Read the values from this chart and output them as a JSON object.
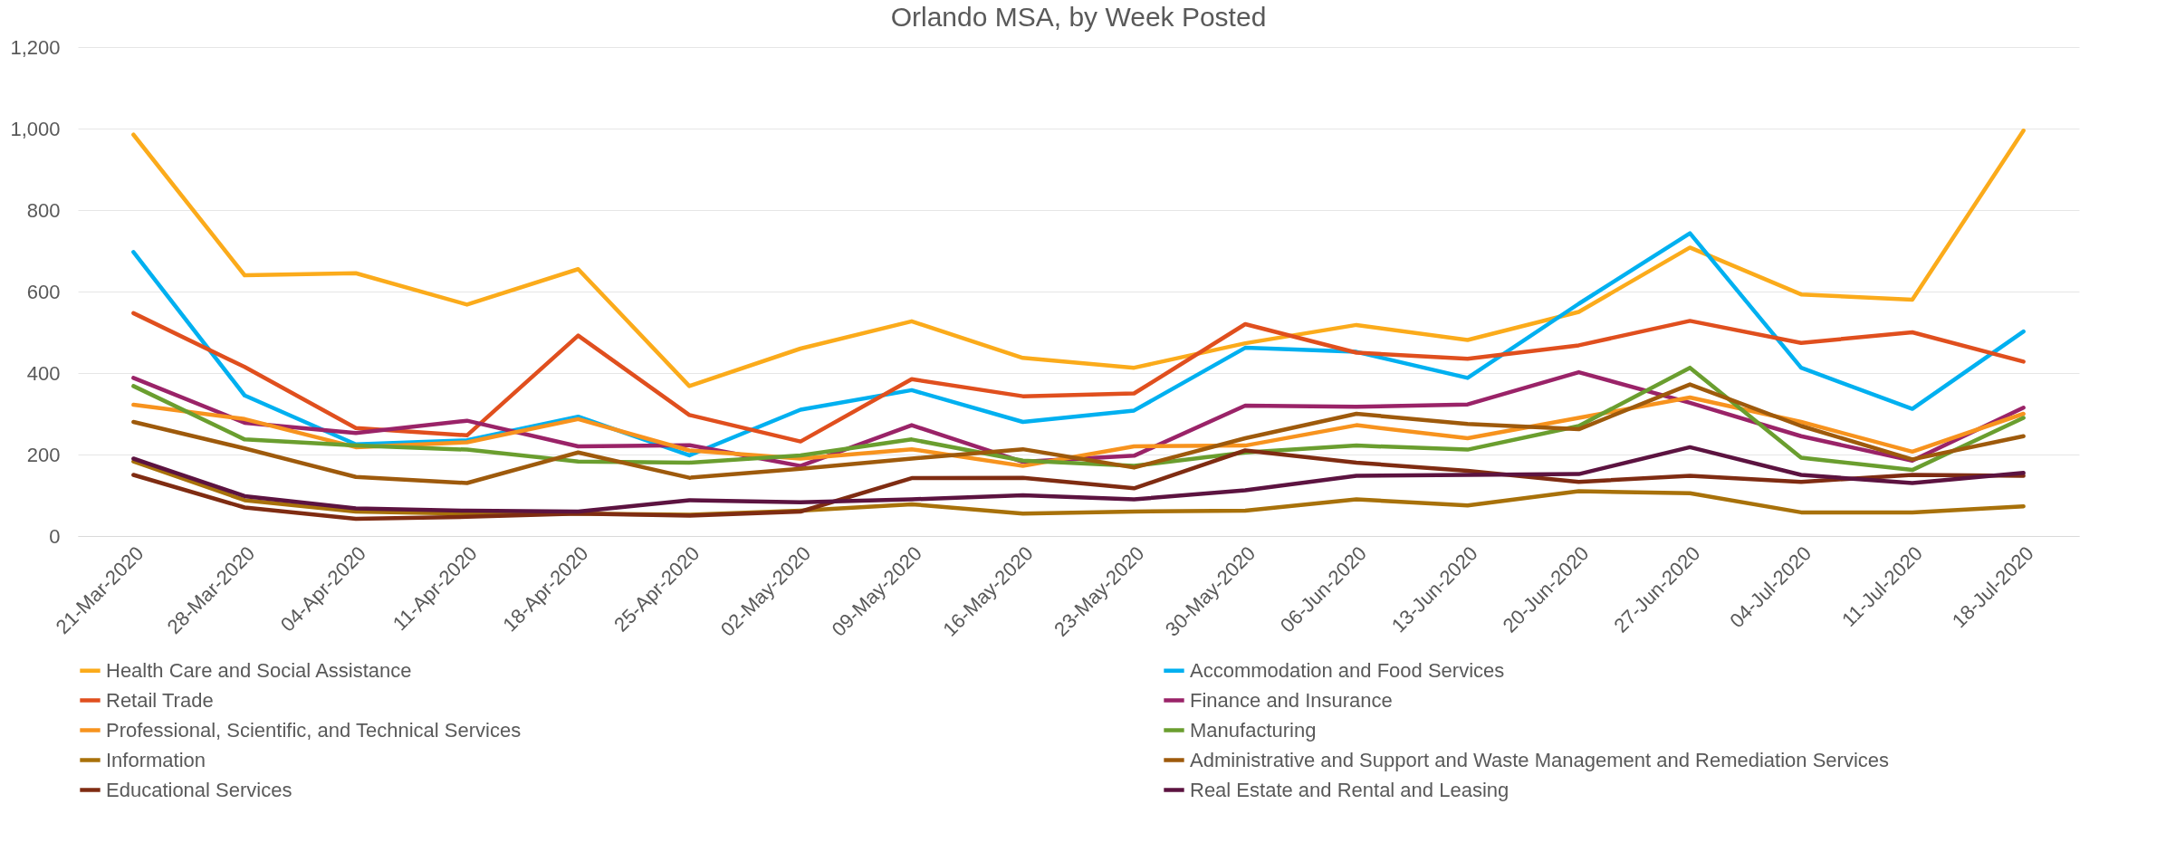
{
  "chart_data": {
    "type": "line",
    "title": "Orlando MSA, by Week Posted",
    "categories": [
      "21-Mar-2020",
      "28-Mar-2020",
      "04-Apr-2020",
      "11-Apr-2020",
      "18-Apr-2020",
      "25-Apr-2020",
      "02-May-2020",
      "09-May-2020",
      "16-May-2020",
      "23-May-2020",
      "30-May-2020",
      "06-Jun-2020",
      "13-Jun-2020",
      "20-Jun-2020",
      "27-Jun-2020",
      "04-Jul-2020",
      "11-Jul-2020",
      "18-Jul-2020"
    ],
    "series": [
      {
        "name": "Health Care and Social Assistance",
        "color": "#fbab1b",
        "values": [
          985,
          640,
          645,
          568,
          655,
          368,
          460,
          527,
          437,
          413,
          473,
          518,
          481,
          550,
          708,
          593,
          580,
          995
        ]
      },
      {
        "name": "Accommodation and Food Services",
        "color": "#00b0f0",
        "values": [
          697,
          345,
          225,
          235,
          293,
          198,
          310,
          358,
          280,
          308,
          462,
          452,
          388,
          570,
          743,
          413,
          312,
          502
        ]
      },
      {
        "name": "Retail Trade",
        "color": "#e04f1e",
        "values": [
          547,
          415,
          265,
          247,
          492,
          297,
          232,
          385,
          343,
          350,
          520,
          450,
          435,
          468,
          528,
          474,
          500,
          428
        ]
      },
      {
        "name": "Finance and Insurance",
        "color": "#9a2368",
        "values": [
          388,
          278,
          253,
          283,
          220,
          223,
          172,
          272,
          182,
          197,
          320,
          317,
          323,
          402,
          327,
          245,
          185,
          315
        ]
      },
      {
        "name": "Professional, Scientific, and Technical Services",
        "color": "#f7931e",
        "values": [
          322,
          287,
          218,
          230,
          287,
          210,
          190,
          213,
          172,
          220,
          222,
          272,
          240,
          290,
          340,
          280,
          207,
          300
        ]
      },
      {
        "name": "Manufacturing",
        "color": "#6a9e2f",
        "values": [
          368,
          237,
          222,
          212,
          183,
          180,
          198,
          237,
          185,
          172,
          205,
          222,
          212,
          270,
          413,
          192,
          162,
          290
        ]
      },
      {
        "name": "Information",
        "color": "#a8710a",
        "values": [
          183,
          88,
          60,
          55,
          55,
          52,
          62,
          78,
          55,
          60,
          62,
          90,
          75,
          110,
          105,
          58,
          58,
          73
        ]
      },
      {
        "name": "Administrative and Support and Waste Management and Remediation Services",
        "color": "#9e5a0c",
        "values": [
          280,
          215,
          145,
          130,
          205,
          143,
          165,
          190,
          213,
          168,
          240,
          300,
          275,
          262,
          372,
          270,
          188,
          245
        ]
      },
      {
        "name": "Educational Services",
        "color": "#7f2c12",
        "values": [
          150,
          70,
          42,
          47,
          55,
          50,
          60,
          142,
          143,
          117,
          210,
          180,
          160,
          133,
          148,
          133,
          150,
          148
        ]
      },
      {
        "name": "Real Estate and Rental and Leasing",
        "color": "#5c1340",
        "values": [
          190,
          98,
          68,
          62,
          60,
          88,
          83,
          90,
          100,
          90,
          112,
          148,
          150,
          152,
          218,
          150,
          130,
          155
        ]
      }
    ],
    "ylim": [
      0,
      1200
    ],
    "yticks": [
      0,
      200,
      400,
      600,
      800,
      {
        "value": 1000,
        "label": "1,000"
      },
      {
        "value": 1200,
        "label": "1,200"
      }
    ],
    "grid": "y",
    "legend": "bottom",
    "marker": "none",
    "line_style": "solid"
  }
}
